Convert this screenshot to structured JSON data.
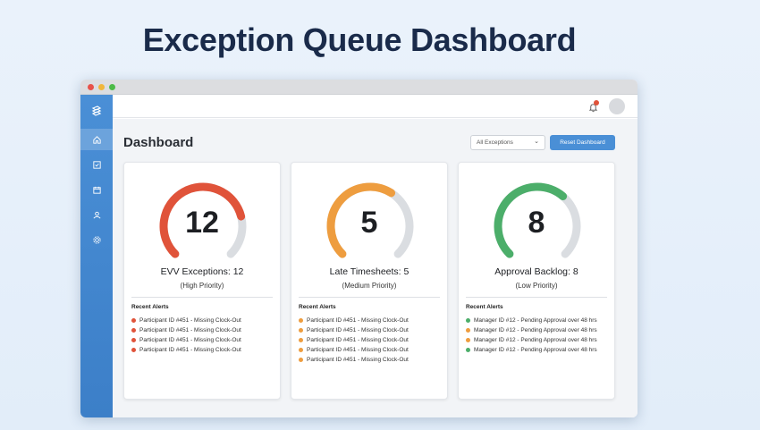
{
  "page_title": "Exception Queue Dashboard",
  "header": {
    "title": "Dashboard"
  },
  "filter": {
    "selected": "All Exceptions"
  },
  "reset_button": "Reset Dashboard",
  "cards": [
    {
      "value": "12",
      "value_fraction": 0.78,
      "color": "#e0533a",
      "title": "EVV Exceptions: 12",
      "subtitle": "(High Priority)",
      "alerts_label": "Recent Alerts",
      "alerts": [
        {
          "text": "Participant ID #451 - Missing Clock-Out",
          "color": "#e0533a"
        },
        {
          "text": "Participant ID #451 - Missing Clock-Out",
          "color": "#e0533a"
        },
        {
          "text": "Participant ID #451 - Missing Clock-Out",
          "color": "#e0533a"
        },
        {
          "text": "Participant ID #451 - Missing Clock-Out",
          "color": "#e0533a"
        }
      ]
    },
    {
      "value": "5",
      "value_fraction": 0.62,
      "color": "#ee9d3f",
      "title": "Late Timesheets: 5",
      "subtitle": "(Medium Priority)",
      "alerts_label": "Recent Alerts",
      "alerts": [
        {
          "text": "Participant ID #451 - Missing Clock-Out",
          "color": "#ee9d3f"
        },
        {
          "text": "Participant ID #451 - Missing Clock-Out",
          "color": "#ee9d3f"
        },
        {
          "text": "Participant ID #451 - Missing Clock-Out",
          "color": "#ee9d3f"
        },
        {
          "text": "Participant ID #451 - Missing Clock-Out",
          "color": "#ee9d3f"
        },
        {
          "text": "Participant ID #451 - Missing Clock-Out",
          "color": "#ee9d3f"
        }
      ]
    },
    {
      "value": "8",
      "value_fraction": 0.65,
      "color": "#4cae6a",
      "title": "Approval Backlog: 8",
      "subtitle": "(Low Priority)",
      "alerts_label": "Recent Alerts",
      "alerts": [
        {
          "text": "Manager ID #12 - Pending Approval over 48 hrs",
          "color": "#4cae6a"
        },
        {
          "text": "Manager ID #12 - Pending Approval over 48 hrs",
          "color": "#ee9d3f"
        },
        {
          "text": "Manager ID #12 - Pending Approval over 48 hrs",
          "color": "#ee9d3f"
        },
        {
          "text": "Manager ID #12 - Pending Approval over 48 hrs",
          "color": "#4cae6a"
        }
      ]
    }
  ],
  "icons": {
    "logo": "logo-icon",
    "home": "home-icon",
    "tasks": "checklist-icon",
    "calendar": "calendar-icon",
    "users": "user-icon",
    "settings": "gear-icon",
    "bell": "bell-icon",
    "avatar": "avatar"
  }
}
